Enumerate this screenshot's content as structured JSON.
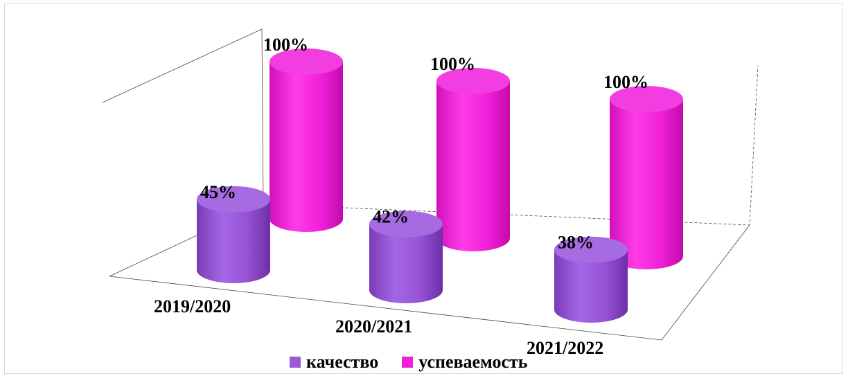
{
  "chart_data": {
    "type": "bar",
    "style": "3d-cylinder",
    "categories": [
      "2019/2020",
      "2020/2021",
      "2021/2022"
    ],
    "series": [
      {
        "name": "качество",
        "values": [
          45,
          42,
          38
        ],
        "labels": [
          "45%",
          "42%",
          "38%"
        ],
        "color": "#9b59d6"
      },
      {
        "name": "успеваемость",
        "values": [
          100,
          100,
          100
        ],
        "labels": [
          "100%",
          "100%",
          "100%"
        ],
        "color": "#f01fd8"
      }
    ],
    "ylim": [
      0,
      100
    ],
    "legend_position": "bottom",
    "grid": false
  }
}
